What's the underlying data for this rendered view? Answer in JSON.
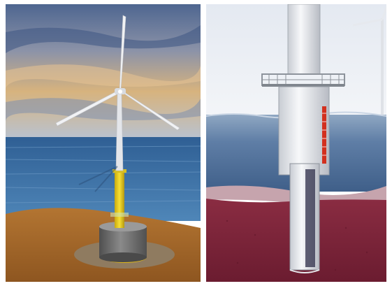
{
  "scene": {
    "left_panel": {
      "subject": "offshore-wind-turbine-gravity-foundation-render",
      "colors": {
        "sky_top": "#5f7398",
        "sky_glow": "#d9b07a",
        "sea": "#3f74a8",
        "seabed": "#a4672b",
        "tower": "#e4e6ea",
        "transition_piece": "#f2d51a",
        "foundation": "#6c6c6c",
        "scour_protection": "#9c8a6e"
      }
    },
    "right_panel": {
      "subject": "offshore-wind-turbine-monopile-cross-section",
      "colors": {
        "sky": "#e7ecf3",
        "sea_surface": "#8fa7c2",
        "sea_deep": "#4c6d96",
        "seabed_top": "#c9a8b0",
        "soil": "#7a2438",
        "pile": "#eef0f4",
        "platform": "#9aa0a8",
        "accent_red": "#d2301e"
      }
    }
  }
}
